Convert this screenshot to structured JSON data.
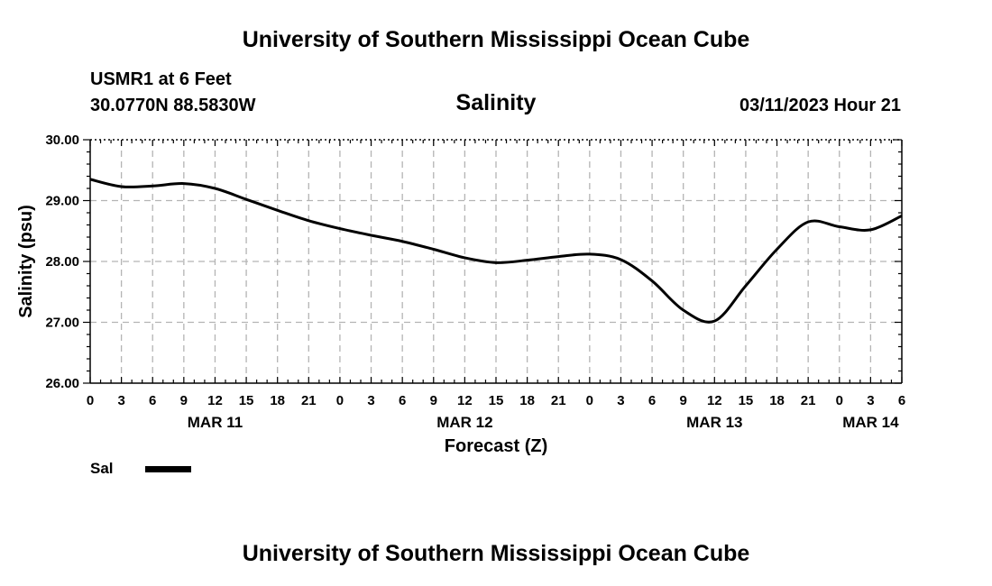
{
  "header": {
    "title": "University of Southern Mississippi Ocean Cube",
    "station": "USMR1 at 6 Feet",
    "coordinates": "30.0770N  88.5830W",
    "datetime": "03/11/2023 Hour 21"
  },
  "footer": {
    "title": "University of Southern Mississippi Ocean Cube"
  },
  "legend": {
    "label": "Sal",
    "color": "#000000"
  },
  "chart_data": {
    "type": "line",
    "title": "Salinity",
    "xlabel": "Forecast (Z)",
    "ylabel": "Salinity (psu)",
    "xlim": [
      0,
      78
    ],
    "ylim": [
      26,
      30
    ],
    "grid": true,
    "yticks": [
      "26.00",
      "27.00",
      "28.00",
      "29.00",
      "30.00"
    ],
    "xtick_labels": [
      "0",
      "3",
      "6",
      "9",
      "12",
      "15",
      "18",
      "21",
      "0",
      "3",
      "6",
      "9",
      "12",
      "15",
      "18",
      "21",
      "0",
      "3",
      "6",
      "9",
      "12",
      "15",
      "18",
      "21",
      "0",
      "3",
      "6"
    ],
    "date_labels": [
      {
        "hour": 12,
        "label": "MAR 11"
      },
      {
        "hour": 36,
        "label": "MAR 12"
      },
      {
        "hour": 60,
        "label": "MAR 13"
      },
      {
        "hour": 75,
        "label": "MAR 14"
      }
    ],
    "series": [
      {
        "name": "Sal",
        "color": "#000000",
        "x": [
          0,
          3,
          6,
          9,
          12,
          15,
          18,
          21,
          24,
          27,
          30,
          33,
          36,
          39,
          42,
          45,
          48,
          51,
          54,
          57,
          60,
          63,
          66,
          69,
          72,
          75,
          78
        ],
        "y": [
          29.35,
          29.23,
          29.24,
          29.28,
          29.2,
          29.02,
          28.84,
          28.67,
          28.54,
          28.43,
          28.33,
          28.2,
          28.06,
          27.98,
          28.02,
          28.08,
          28.12,
          28.03,
          27.68,
          27.2,
          27.02,
          27.6,
          28.2,
          28.65,
          28.57,
          28.52,
          28.75
        ]
      }
    ]
  }
}
